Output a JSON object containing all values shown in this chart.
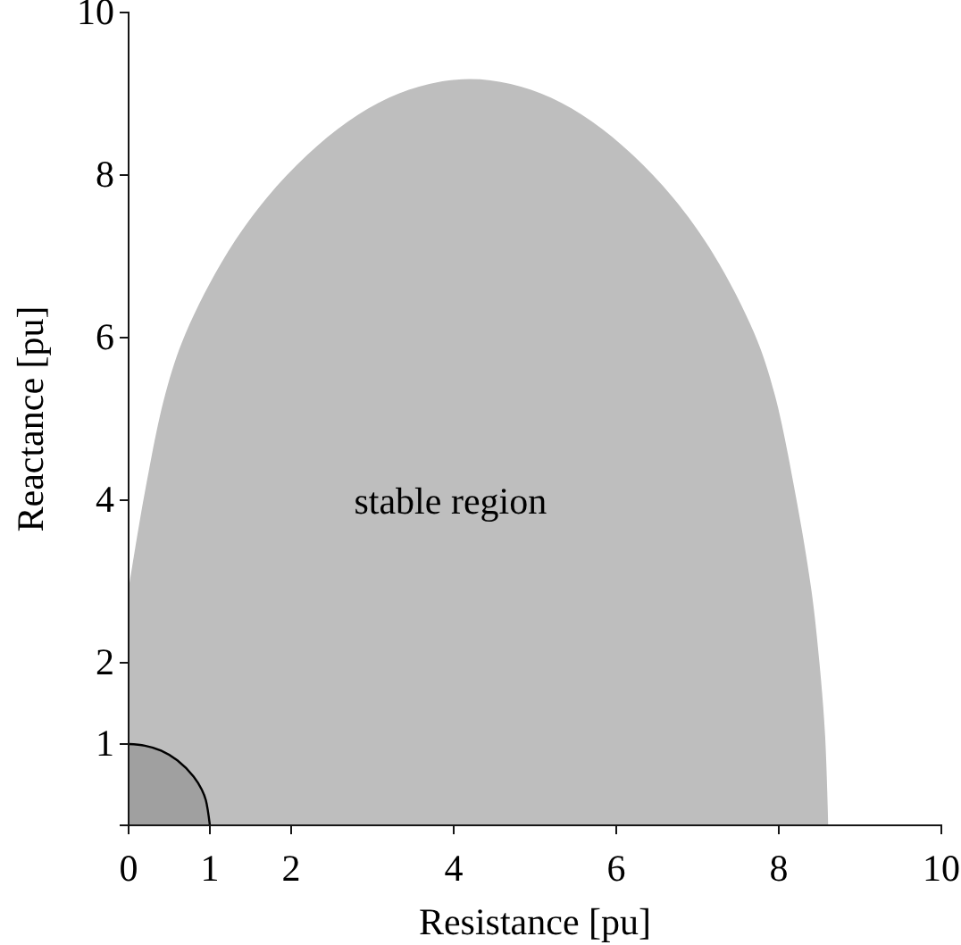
{
  "chart_data": {
    "type": "area",
    "xlabel": "Resistance [pu]",
    "ylabel": "Reactance [pu]",
    "xlim": [
      0,
      10
    ],
    "ylim": [
      0,
      10
    ],
    "xticks": [
      0,
      1,
      2,
      4,
      6,
      8,
      10
    ],
    "yticks": [
      {
        "value": 0,
        "label": null
      },
      1,
      2,
      4,
      6,
      8,
      10
    ],
    "grid": false,
    "series": [
      {
        "color": "#bebebe",
        "x": [
          0,
          0.2,
          0.45,
          0.7,
          1.2,
          1.7,
          2.2,
          2.7,
          3.2,
          3.7,
          4.2,
          4.7,
          5.2,
          5.7,
          6.2,
          6.7,
          7.2,
          7.7,
          7.95,
          8.2,
          8.4,
          8.5,
          8.57,
          8.61
        ],
        "values": [
          2.9,
          4.1,
          5.3,
          6.05,
          7.02,
          7.72,
          8.25,
          8.66,
          8.95,
          9.12,
          9.18,
          9.12,
          8.95,
          8.66,
          8.25,
          7.72,
          7.02,
          6.05,
          5.3,
          4.1,
          2.9,
          2,
          1.1,
          0
        ]
      },
      {
        "color": "#a0a0a0",
        "x": [
          0,
          0.2,
          0.4,
          0.6,
          0.8,
          0.9,
          0.95,
          1
        ],
        "values": [
          1,
          0.98,
          0.92,
          0.8,
          0.6,
          0.44,
          0.31,
          0
        ]
      }
    ],
    "annotations": [
      "stable region"
    ]
  }
}
